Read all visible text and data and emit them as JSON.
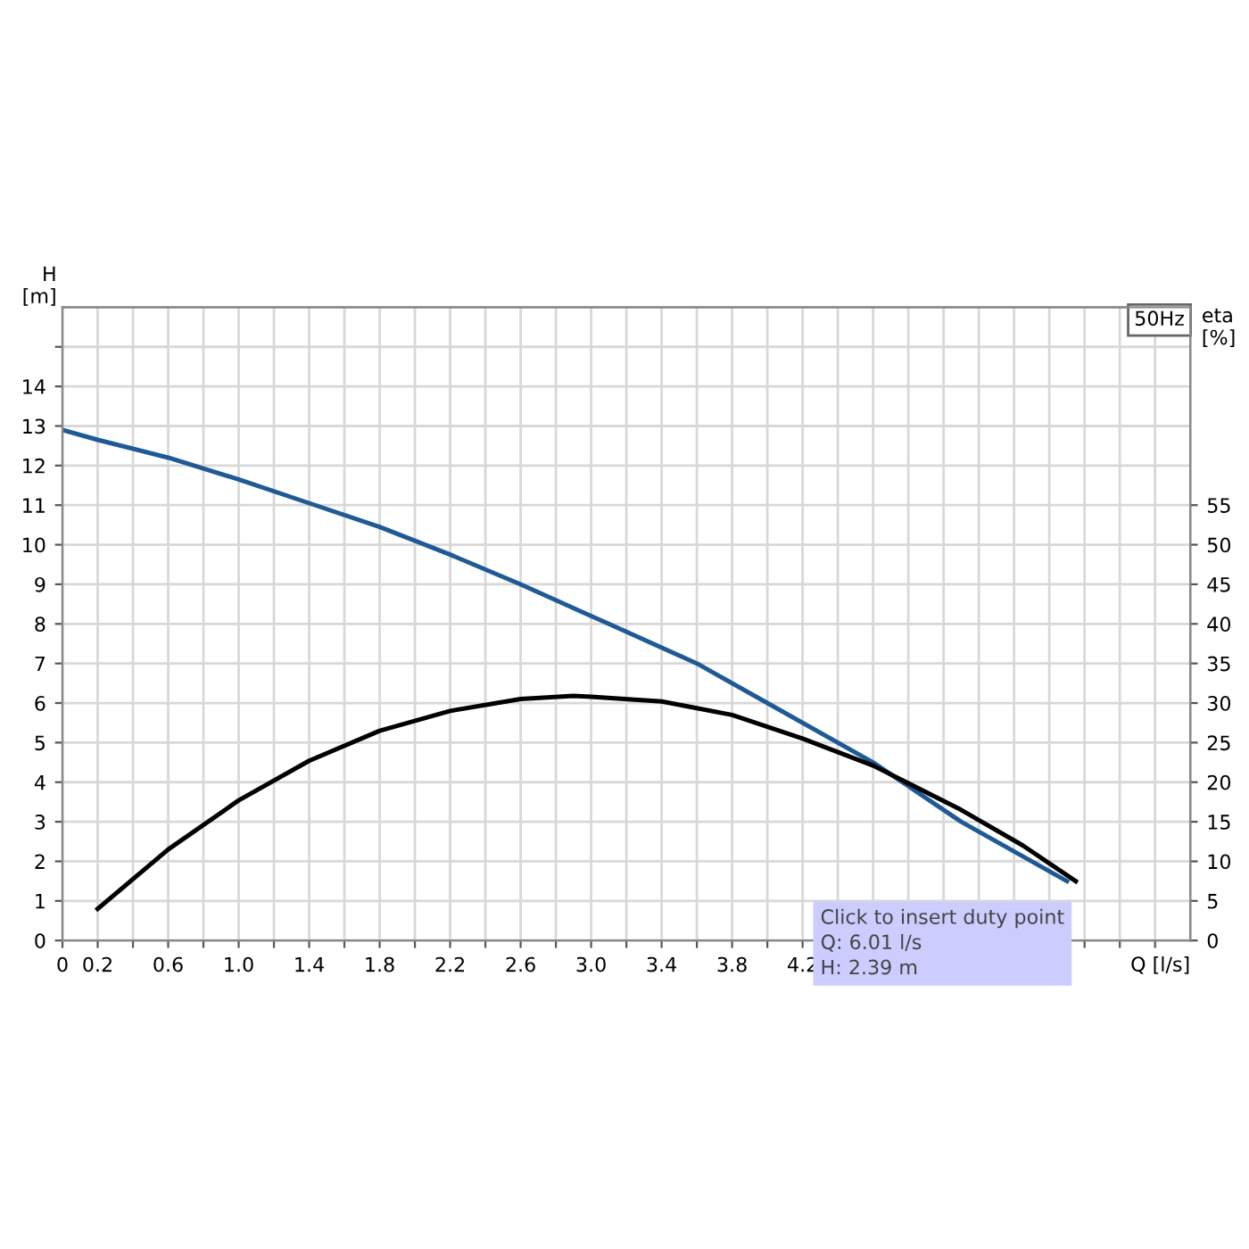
{
  "chart_data": {
    "type": "line",
    "xlabel": "Q [l/s]",
    "ylabel": "H\n[m]",
    "y2label": "eta\n[%]",
    "series": [
      {
        "color": "#1f5a96",
        "x": [
          0,
          0.2,
          0.6,
          1.0,
          1.4,
          1.8,
          2.2,
          2.6,
          3.0,
          3.1,
          3.6,
          4.0,
          4.6,
          5.1,
          5.7
        ],
        "values": [
          12.9,
          12.65,
          12.2,
          11.65,
          11.05,
          10.45,
          9.75,
          9.0,
          8.2,
          8.0,
          7.0,
          6.0,
          4.5,
          3.0,
          1.5
        ]
      },
      {
        "color": "#000000",
        "axis": "y2",
        "x": [
          0.2,
          0.6,
          1.0,
          1.4,
          1.8,
          2.2,
          2.6,
          2.9,
          3.0,
          3.4,
          3.8,
          4.2,
          4.6,
          5.1,
          5.45,
          5.75
        ],
        "values": [
          4,
          11.5,
          17.7,
          22.7,
          26.5,
          29,
          30.5,
          30.9,
          30.8,
          30.2,
          28.5,
          25.5,
          22.1,
          16.5,
          12,
          7.5
        ]
      }
    ],
    "xlim": [
      0,
      6.4
    ],
    "xticks": [
      0,
      0.2,
      {
        "value": 0.4,
        "label": null
      },
      0.6,
      {
        "value": 0.8,
        "label": null
      },
      {
        "value": 1.0,
        "label": "1.0"
      },
      {
        "value": 1.2,
        "label": null
      },
      1.4,
      {
        "value": 1.6,
        "label": null
      },
      1.8,
      {
        "value": 2.0,
        "label": null
      },
      2.2,
      {
        "value": 2.4,
        "label": null
      },
      2.6,
      {
        "value": 2.8,
        "label": null
      },
      {
        "value": 3.0,
        "label": "3.0"
      },
      {
        "value": 3.2,
        "label": null
      },
      3.4,
      {
        "value": 3.6,
        "label": null
      },
      3.8,
      {
        "value": 4.0,
        "label": null
      },
      4.2,
      {
        "value": 4.4,
        "label": null
      },
      {
        "value": 4.6,
        "label": null
      },
      {
        "value": 4.8,
        "label": null
      },
      {
        "value": 5.0,
        "label": null
      },
      {
        "value": 5.2,
        "label": null
      },
      {
        "value": 5.4,
        "label": null
      },
      {
        "value": 5.6,
        "label": null
      },
      {
        "value": 5.8,
        "label": null
      },
      {
        "value": 6.0,
        "label": null
      },
      {
        "value": 6.2,
        "label": null
      }
    ],
    "ylim": [
      0,
      16
    ],
    "yticks": [
      0,
      1,
      2,
      3,
      4,
      5,
      6,
      7,
      8,
      9,
      10,
      11,
      12,
      13,
      14,
      {
        "value": 15,
        "label": null
      }
    ],
    "y2lim": [
      0,
      80
    ],
    "y2ticks": [
      0,
      5,
      10,
      15,
      20,
      25,
      30,
      35,
      40,
      45,
      50,
      55
    ],
    "grid": true,
    "line_style": "solid",
    "marker": "none",
    "annotations": [
      "50Hz",
      "Click to insert duty point\nQ: 6.01 l/s\nH: 2.39 m"
    ]
  }
}
